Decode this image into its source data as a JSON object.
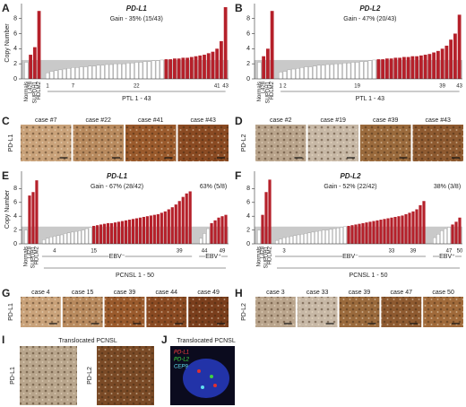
{
  "chart_data": [
    {
      "type": "bar",
      "panel": "A",
      "title": "PD-L1",
      "subtitle": "Gain - 35% (15/43)",
      "ylabel": "Copy Number",
      "ylim": [
        0,
        9.5
      ],
      "yticks": [
        0,
        2,
        4,
        6,
        8
      ],
      "threshold": 2.5,
      "colors": {
        "gain": "#b5202a",
        "no_gain": "#ffffff",
        "threshold_band": "#c9c9c9"
      },
      "controls": {
        "categories": [
          "Normals",
          "L428",
          "SUPDH1",
          "HDLM2"
        ],
        "values": [
          2.2,
          3.2,
          4.2,
          9.0
        ]
      },
      "groups": [
        {
          "values": [
            0.8,
            1.0,
            1.1,
            1.2,
            1.3,
            1.4,
            1.5,
            1.5,
            1.6,
            1.6,
            1.7,
            1.7,
            1.8,
            1.8,
            1.9,
            1.9,
            2.0,
            2.0,
            2.0,
            2.1,
            2.1,
            2.2,
            2.2,
            2.3,
            2.3,
            2.4,
            2.4,
            2.5,
            2.6,
            2.6,
            2.7,
            2.7,
            2.8,
            2.8,
            2.9,
            3.0,
            3.1,
            3.2,
            3.4,
            3.6,
            4.0,
            5.0,
            9.5
          ]
        }
      ],
      "case_ticks": [
        1,
        7,
        22,
        41,
        43
      ],
      "xlabel": "PTL 1 - 43"
    },
    {
      "type": "bar",
      "panel": "B",
      "title": "PD-L2",
      "subtitle": "Gain - 47% (20/43)",
      "ylim": [
        0,
        9.5
      ],
      "yticks": [
        0,
        2,
        4,
        6,
        8
      ],
      "threshold": 2.5,
      "colors": {
        "gain": "#b5202a",
        "no_gain": "#ffffff",
        "threshold_band": "#c9c9c9"
      },
      "controls": {
        "categories": [
          "Normals",
          "L428",
          "SUPDH1",
          "HDLM2"
        ],
        "values": [
          2.2,
          3.0,
          4.0,
          9.0
        ]
      },
      "groups": [
        {
          "values": [
            0.9,
            1.0,
            1.2,
            1.3,
            1.4,
            1.5,
            1.6,
            1.6,
            1.7,
            1.8,
            1.8,
            1.9,
            1.9,
            2.0,
            2.0,
            2.1,
            2.1,
            2.2,
            2.2,
            2.3,
            2.3,
            2.4,
            2.5,
            2.6,
            2.6,
            2.7,
            2.7,
            2.8,
            2.8,
            2.9,
            2.9,
            3.0,
            3.0,
            3.1,
            3.2,
            3.3,
            3.5,
            3.7,
            4.0,
            4.4,
            5.2,
            6.0,
            8.5
          ]
        }
      ],
      "case_ticks": [
        1,
        2,
        19,
        39,
        43
      ],
      "xlabel": "PTL 1 - 43"
    },
    {
      "type": "bar",
      "panel": "E",
      "title": "PD-L1",
      "subtitle": "Gain - 67% (28/42)",
      "ylabel": "Copy Number",
      "ylim": [
        0,
        10
      ],
      "yticks": [
        0,
        2,
        4,
        6,
        8
      ],
      "threshold": 2.5,
      "colors": {
        "gain": "#b5202a",
        "no_gain": "#ffffff",
        "threshold_band": "#c9c9c9"
      },
      "controls": {
        "categories": [
          "Normals",
          "L428",
          "SUPDH1",
          "HDLM2"
        ],
        "values": [
          2.0,
          7.0,
          7.5,
          9.2
        ]
      },
      "groups": [
        {
          "name": "EBV⁻",
          "values": [
            0.6,
            0.8,
            1.0,
            1.1,
            1.2,
            1.3,
            1.5,
            1.6,
            1.7,
            1.8,
            1.9,
            2.0,
            2.2,
            2.4,
            2.6,
            2.7,
            2.8,
            2.9,
            3.0,
            3.0,
            3.1,
            3.2,
            3.3,
            3.4,
            3.5,
            3.6,
            3.7,
            3.8,
            3.9,
            4.0,
            4.1,
            4.2,
            4.3,
            4.5,
            4.7,
            5.0,
            5.3,
            5.7,
            6.2,
            6.8,
            7.3,
            7.6
          ]
        },
        {
          "name": "EBV⁺",
          "subtitle": "63% (5/8)",
          "values": [
            0.8,
            1.5,
            2.2,
            3.0,
            3.4,
            3.8,
            4.0,
            4.2
          ]
        }
      ],
      "case_ticks": [
        4,
        15,
        39,
        44,
        49
      ],
      "xlabel": "PCNSL 1 - 50"
    },
    {
      "type": "bar",
      "panel": "F",
      "title": "PD-L2",
      "subtitle": "Gain - 52% (22/42)",
      "ylim": [
        0,
        10
      ],
      "yticks": [
        0,
        2,
        4,
        6,
        8
      ],
      "threshold": 2.5,
      "colors": {
        "gain": "#b5202a",
        "no_gain": "#ffffff",
        "threshold_band": "#c9c9c9"
      },
      "controls": {
        "categories": [
          "Normals",
          "L428",
          "SUPDH1",
          "HDLM2"
        ],
        "values": [
          2.0,
          4.2,
          7.5,
          9.3
        ]
      },
      "groups": [
        {
          "name": "EBV⁻",
          "values": [
            0.5,
            0.7,
            0.9,
            1.0,
            1.1,
            1.2,
            1.3,
            1.4,
            1.5,
            1.6,
            1.7,
            1.8,
            1.9,
            2.0,
            2.0,
            2.1,
            2.2,
            2.3,
            2.4,
            2.5,
            2.6,
            2.7,
            2.8,
            2.9,
            3.0,
            3.1,
            3.2,
            3.3,
            3.4,
            3.5,
            3.6,
            3.7,
            3.8,
            3.9,
            4.0,
            4.1,
            4.3,
            4.5,
            4.7,
            5.0,
            5.6,
            6.2
          ]
        },
        {
          "name": "EBV⁺",
          "subtitle": "38% (3/8)",
          "values": [
            0.9,
            1.4,
            1.9,
            2.2,
            2.4,
            2.8,
            3.2,
            3.8
          ]
        }
      ],
      "case_ticks": [
        3,
        33,
        39,
        47,
        50
      ],
      "xlabel": "PCNSL 1 - 50"
    }
  ],
  "image_panels": [
    {
      "panel": "C",
      "side_label": "PD-L1",
      "cases": [
        "case #7",
        "case #22",
        "case #41",
        "case #43"
      ]
    },
    {
      "panel": "D",
      "side_label": "PD-L2",
      "cases": [
        "case #2",
        "case #19",
        "case #39",
        "case #43"
      ]
    },
    {
      "panel": "G",
      "side_label": "PD-L1",
      "cases": [
        "case 4",
        "case 15",
        "case 39",
        "case 44",
        "case 49"
      ]
    },
    {
      "panel": "H",
      "side_label": "PD-L2",
      "cases": [
        "case 3",
        "case 33",
        "case 39",
        "case 47",
        "case 50"
      ]
    }
  ],
  "translocated": [
    {
      "panel": "I",
      "title": "Translocated PCNSL",
      "labels": [
        "PD-L1",
        "PD-L2"
      ]
    },
    {
      "panel": "J",
      "title": "Translocated PCNSL",
      "probes": [
        "PD-L1",
        "PD-L2",
        "CEP9"
      ]
    }
  ]
}
